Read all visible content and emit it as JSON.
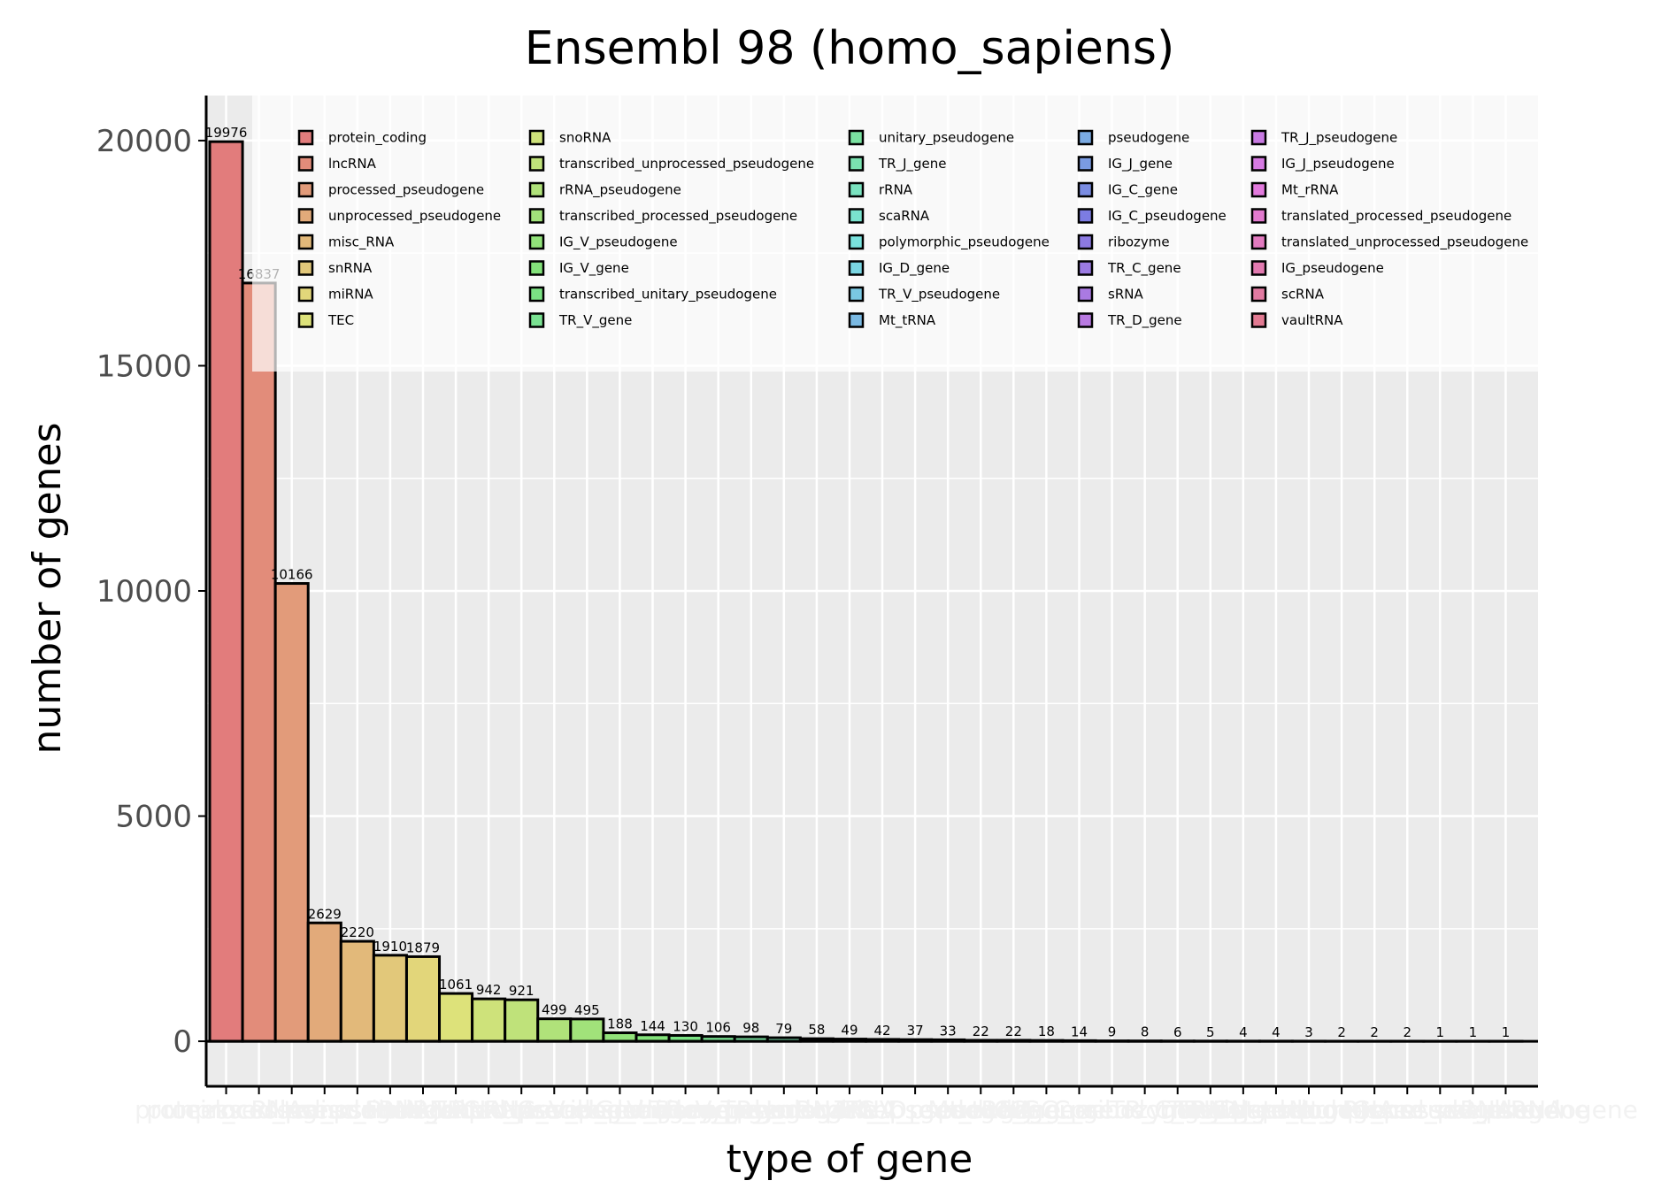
{
  "chart_data": {
    "type": "bar",
    "title": "Ensembl 98 (homo_sapiens)",
    "xlabel": "type of gene",
    "ylabel": "number of genes",
    "ylim": [
      -1000,
      21000
    ],
    "yticks": [
      0,
      5000,
      10000,
      15000,
      20000
    ],
    "ytick_labels": [
      "0",
      "5000",
      "10000",
      "15000",
      "20000"
    ],
    "grid": true,
    "legend_position": "top-right",
    "categories": [
      "protein_coding",
      "lncRNA",
      "processed_pseudogene",
      "unprocessed_pseudogene",
      "misc_RNA",
      "snRNA",
      "miRNA",
      "TEC",
      "snoRNA",
      "transcribed_unprocessed_pseudogene",
      "rRNA_pseudogene",
      "transcribed_processed_pseudogene",
      "IG_V_pseudogene",
      "IG_V_gene",
      "transcribed_unitary_pseudogene",
      "TR_V_gene",
      "unitary_pseudogene",
      "TR_J_gene",
      "rRNA",
      "scaRNA",
      "polymorphic_pseudogene",
      "IG_D_gene",
      "TR_V_pseudogene",
      "Mt_tRNA",
      "pseudogene",
      "IG_J_gene",
      "IG_C_gene",
      "IG_C_pseudogene",
      "ribozyme",
      "TR_C_gene",
      "sRNA",
      "TR_D_gene",
      "TR_J_pseudogene",
      "IG_J_pseudogene",
      "Mt_rRNA",
      "translated_processed_pseudogene",
      "translated_unprocessed_pseudogene",
      "IG_pseudogene",
      "scRNA",
      "vaultRNA"
    ],
    "values": [
      19976,
      16837,
      10166,
      2629,
      2220,
      1910,
      1879,
      1061,
      942,
      921,
      499,
      495,
      188,
      144,
      130,
      106,
      98,
      79,
      58,
      49,
      42,
      37,
      33,
      22,
      22,
      18,
      14,
      9,
      8,
      6,
      5,
      4,
      4,
      3,
      2,
      2,
      2,
      1,
      1,
      1
    ],
    "value_labels": [
      "19976",
      "16837",
      "10166",
      "2629",
      "2220",
      "1910",
      "1879",
      "1061",
      "942",
      "921",
      "499",
      "495",
      "188",
      "144",
      "130",
      "106",
      "98",
      "79",
      "58",
      "49",
      "42",
      "37",
      "33",
      "22",
      "22",
      "18",
      "14",
      "9",
      "8",
      "6",
      "5",
      "4",
      "4",
      "3",
      "2",
      "2",
      "2",
      "1",
      "1",
      "1"
    ],
    "colors": [
      "#e27c7c",
      "#e28c7a",
      "#e29b7a",
      "#e2aa7a",
      "#e2b97a",
      "#e2c87a",
      "#e2d67a",
      "#dde27a",
      "#cee27a",
      "#bfe27a",
      "#b0e27a",
      "#a1e27a",
      "#92e27a",
      "#83e27a",
      "#7ae283",
      "#7ae292",
      "#7ae2a1",
      "#7ae2b0",
      "#7ae2bf",
      "#7ae2ce",
      "#7ae2dd",
      "#7ad6e2",
      "#7ac8e2",
      "#7ab9e2",
      "#7aaae2",
      "#7a9be2",
      "#7a8ce2",
      "#7c7ce2",
      "#8c7ae2",
      "#9b7ae2",
      "#aa7ae2",
      "#b97ae2",
      "#c87ae2",
      "#d67ae2",
      "#e27add",
      "#e27ace",
      "#e27abf",
      "#e27ab0",
      "#e27aa1",
      "#e27a92"
    ],
    "legend_entries": [
      "protein_coding",
      "lncRNA",
      "processed_pseudogene",
      "unprocessed_pseudogene",
      "misc_RNA",
      "snRNA",
      "miRNA",
      "TEC",
      "snoRNA",
      "transcribed_unprocessed_pseudogene",
      "rRNA_pseudogene",
      "transcribed_processed_pseudogene",
      "IG_V_pseudogene",
      "IG_V_gene",
      "transcribed_unitary_pseudogene",
      "TR_V_gene",
      "unitary_pseudogene",
      "TR_J_gene",
      "rRNA",
      "scaRNA",
      "polymorphic_pseudogene",
      "IG_D_gene",
      "TR_V_pseudogene",
      "Mt_tRNA",
      "pseudogene",
      "IG_J_gene",
      "IG_C_gene",
      "IG_C_pseudogene",
      "ribozyme",
      "TR_C_gene",
      "sRNA",
      "TR_D_gene",
      "TR_J_pseudogene",
      "IG_J_pseudogene",
      "Mt_rRNA",
      "translated_processed_pseudogene",
      "translated_unprocessed_pseudogene",
      "IG_pseudogene",
      "scRNA",
      "vaultRNA"
    ]
  }
}
